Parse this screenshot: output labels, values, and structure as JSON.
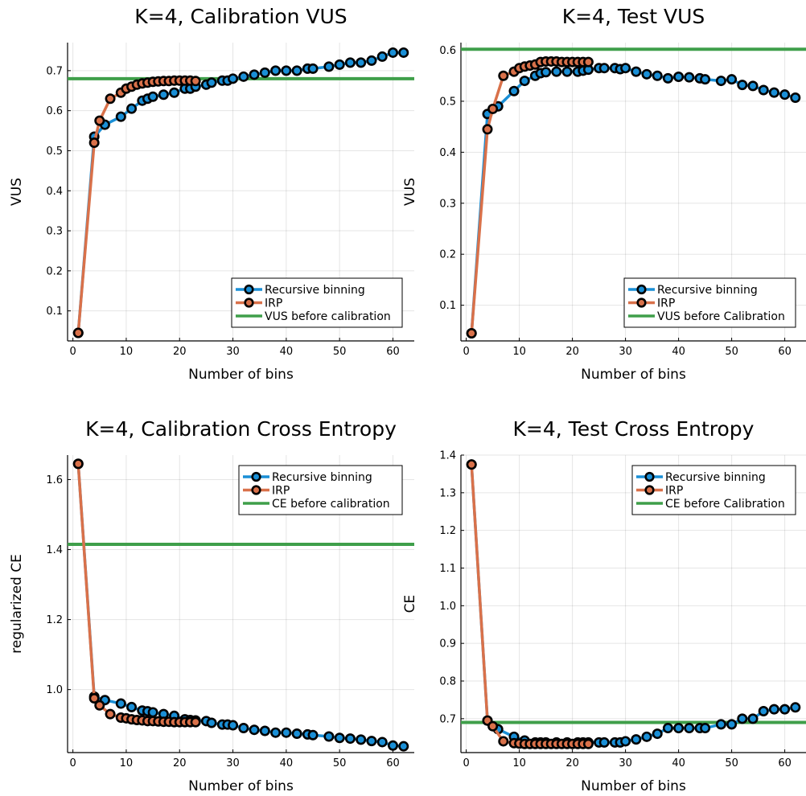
{
  "colors": {
    "recursive": "#1a8fd6",
    "irp": "#d9714a",
    "baseline": "#3f9f4a",
    "marker_edge": "#000000"
  },
  "chart_data": [
    {
      "type": "line",
      "title": "K=4, Calibration VUS",
      "xlabel": "Number of bins",
      "ylabel": "VUS",
      "xlim": [
        -1,
        64
      ],
      "ylim": [
        0.025,
        0.77
      ],
      "xticks": [
        0,
        10,
        20,
        30,
        40,
        50,
        60
      ],
      "yticks": [
        0.1,
        0.2,
        0.3,
        0.4,
        0.5,
        0.6,
        0.7
      ],
      "ytick_labels": [
        "0.1",
        "0.2",
        "0.3",
        "0.4",
        "0.5",
        "0.6",
        "0.7"
      ],
      "grid": true,
      "legend": "bottom-right",
      "series": [
        {
          "name": "Recursive binning",
          "x": [
            1,
            4,
            6,
            9,
            11,
            13,
            14,
            15,
            17,
            19,
            21,
            22,
            23,
            25,
            26,
            28,
            29,
            30,
            32,
            34,
            36,
            38,
            40,
            42,
            44,
            45,
            48,
            50,
            52,
            54,
            56,
            58,
            60,
            62
          ],
          "y": [
            0.045,
            0.535,
            0.565,
            0.585,
            0.605,
            0.625,
            0.63,
            0.635,
            0.64,
            0.645,
            0.655,
            0.655,
            0.66,
            0.665,
            0.67,
            0.675,
            0.675,
            0.68,
            0.685,
            0.69,
            0.695,
            0.7,
            0.7,
            0.7,
            0.705,
            0.705,
            0.71,
            0.715,
            0.72,
            0.72,
            0.725,
            0.735,
            0.745,
            0.745
          ]
        },
        {
          "name": "IRP",
          "x": [
            1,
            4,
            5,
            7,
            9,
            10,
            11,
            12,
            13,
            14,
            15,
            16,
            17,
            18,
            19,
            20,
            21,
            22,
            23
          ],
          "y": [
            0.045,
            0.52,
            0.575,
            0.63,
            0.645,
            0.655,
            0.66,
            0.665,
            0.668,
            0.67,
            0.672,
            0.673,
            0.674,
            0.674,
            0.675,
            0.675,
            0.675,
            0.675,
            0.674
          ]
        }
      ],
      "baseline": {
        "name": "VUS before calibration",
        "y": 0.68
      }
    },
    {
      "type": "line",
      "title": "K=4, Test VUS",
      "xlabel": "Number of bins",
      "ylabel": "VUS",
      "xlim": [
        -1,
        64
      ],
      "ylim": [
        0.03,
        0.615
      ],
      "xticks": [
        0,
        10,
        20,
        30,
        40,
        50,
        60
      ],
      "yticks": [
        0.1,
        0.2,
        0.3,
        0.4,
        0.5,
        0.6
      ],
      "ytick_labels": [
        "0.1",
        "0.2",
        "0.3",
        "0.4",
        "0.5",
        "0.6"
      ],
      "grid": true,
      "legend": "bottom-right",
      "series": [
        {
          "name": "Recursive binning",
          "x": [
            1,
            4,
            6,
            9,
            11,
            13,
            14,
            15,
            17,
            19,
            21,
            22,
            23,
            25,
            26,
            28,
            29,
            30,
            32,
            34,
            36,
            38,
            40,
            42,
            44,
            45,
            48,
            50,
            52,
            54,
            56,
            58,
            60,
            62
          ],
          "y": [
            0.045,
            0.475,
            0.49,
            0.52,
            0.54,
            0.55,
            0.555,
            0.557,
            0.558,
            0.558,
            0.558,
            0.56,
            0.562,
            0.565,
            0.565,
            0.565,
            0.563,
            0.565,
            0.558,
            0.553,
            0.55,
            0.545,
            0.548,
            0.547,
            0.545,
            0.543,
            0.54,
            0.543,
            0.532,
            0.53,
            0.522,
            0.517,
            0.513,
            0.507
          ]
        },
        {
          "name": "IRP",
          "x": [
            1,
            4,
            5,
            7,
            9,
            10,
            11,
            12,
            13,
            14,
            15,
            16,
            17,
            18,
            19,
            20,
            21,
            22,
            23
          ],
          "y": [
            0.045,
            0.445,
            0.485,
            0.55,
            0.558,
            0.565,
            0.568,
            0.57,
            0.572,
            0.577,
            0.578,
            0.578,
            0.578,
            0.577,
            0.577,
            0.577,
            0.577,
            0.577,
            0.577
          ]
        }
      ],
      "baseline": {
        "name": "VUS before Calibration",
        "y": 0.602
      }
    },
    {
      "type": "line",
      "title": "K=4, Calibration Cross Entropy",
      "xlabel": "Number of bins",
      "ylabel": "regularized CE",
      "xlim": [
        -1,
        64
      ],
      "ylim": [
        0.82,
        1.67
      ],
      "xticks": [
        0,
        10,
        20,
        30,
        40,
        50,
        60
      ],
      "yticks": [
        1.0,
        1.2,
        1.4,
        1.6
      ],
      "ytick_labels": [
        "1.0",
        "1.2",
        "1.4",
        "1.6"
      ],
      "grid": true,
      "legend": "top-right",
      "series": [
        {
          "name": "Recursive binning",
          "x": [
            1,
            4,
            6,
            9,
            11,
            13,
            14,
            15,
            17,
            19,
            21,
            22,
            23,
            25,
            26,
            28,
            29,
            30,
            32,
            34,
            36,
            38,
            40,
            42,
            44,
            45,
            48,
            50,
            52,
            54,
            56,
            58,
            60,
            62
          ],
          "y": [
            1.645,
            0.98,
            0.97,
            0.96,
            0.95,
            0.94,
            0.938,
            0.935,
            0.93,
            0.925,
            0.915,
            0.913,
            0.912,
            0.91,
            0.905,
            0.9,
            0.9,
            0.898,
            0.89,
            0.885,
            0.882,
            0.877,
            0.877,
            0.874,
            0.872,
            0.87,
            0.866,
            0.862,
            0.86,
            0.857,
            0.853,
            0.85,
            0.84,
            0.838
          ]
        },
        {
          "name": "IRP",
          "x": [
            1,
            4,
            5,
            7,
            9,
            10,
            11,
            12,
            13,
            14,
            15,
            16,
            17,
            18,
            19,
            20,
            21,
            22,
            23
          ],
          "y": [
            1.645,
            0.975,
            0.955,
            0.93,
            0.92,
            0.918,
            0.915,
            0.913,
            0.912,
            0.91,
            0.91,
            0.909,
            0.908,
            0.908,
            0.907,
            0.907,
            0.907,
            0.907,
            0.907
          ]
        }
      ],
      "baseline": {
        "name": "CE before calibration",
        "y": 1.415
      }
    },
    {
      "type": "line",
      "title": "K=4, Test Cross Entropy",
      "xlabel": "Number of bins",
      "ylabel": "CE",
      "xlim": [
        -1,
        64
      ],
      "ylim": [
        0.61,
        1.4
      ],
      "xticks": [
        0,
        10,
        20,
        30,
        40,
        50,
        60
      ],
      "yticks": [
        0.7,
        0.8,
        0.9,
        1.0,
        1.1,
        1.2,
        1.3,
        1.4
      ],
      "ytick_labels": [
        "0.7",
        "0.8",
        "0.9",
        "1.0",
        "1.1",
        "1.2",
        "1.3",
        "1.4"
      ],
      "grid": true,
      "legend": "top-right",
      "series": [
        {
          "name": "Recursive binning",
          "x": [
            1,
            4,
            6,
            9,
            11,
            13,
            14,
            15,
            17,
            19,
            21,
            22,
            23,
            25,
            26,
            28,
            29,
            30,
            32,
            34,
            36,
            38,
            40,
            42,
            44,
            45,
            48,
            50,
            52,
            54,
            56,
            58,
            60,
            62
          ],
          "y": [
            1.375,
            0.695,
            0.672,
            0.652,
            0.642,
            0.637,
            0.637,
            0.637,
            0.637,
            0.637,
            0.637,
            0.637,
            0.637,
            0.637,
            0.637,
            0.637,
            0.637,
            0.64,
            0.645,
            0.652,
            0.66,
            0.675,
            0.675,
            0.675,
            0.675,
            0.675,
            0.685,
            0.685,
            0.7,
            0.7,
            0.72,
            0.725,
            0.725,
            0.73
          ]
        },
        {
          "name": "IRP",
          "x": [
            1,
            4,
            5,
            7,
            9,
            10,
            11,
            12,
            13,
            14,
            15,
            16,
            17,
            18,
            19,
            20,
            21,
            22,
            23
          ],
          "y": [
            1.375,
            0.695,
            0.68,
            0.64,
            0.635,
            0.634,
            0.633,
            0.633,
            0.633,
            0.633,
            0.633,
            0.633,
            0.633,
            0.633,
            0.633,
            0.633,
            0.633,
            0.633,
            0.633
          ]
        }
      ],
      "baseline": {
        "name": "CE before Calibration",
        "y": 0.69
      }
    }
  ]
}
